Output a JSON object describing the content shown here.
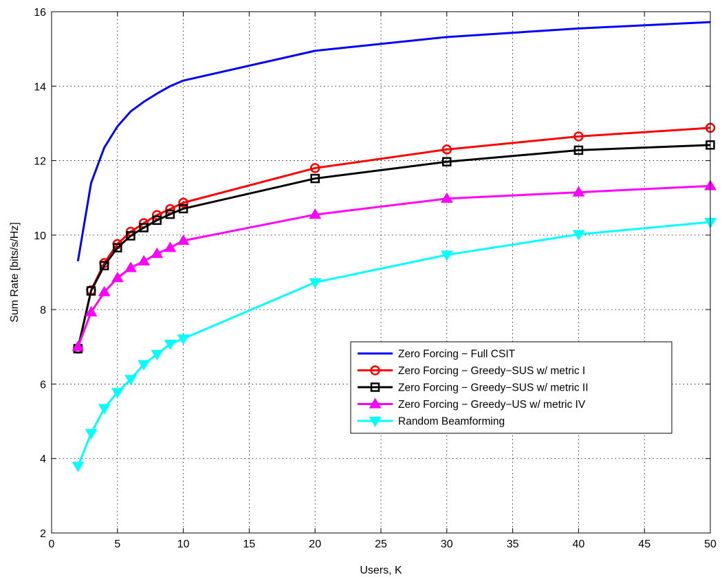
{
  "chart_data": {
    "type": "line",
    "xlabel": "Users, K",
    "ylabel": "Sum Rate [bits/s/Hz]",
    "xlim": [
      0,
      50
    ],
    "ylim": [
      2,
      16
    ],
    "xticks": [
      0,
      5,
      10,
      15,
      20,
      25,
      30,
      35,
      40,
      45,
      50
    ],
    "yticks": [
      2,
      4,
      6,
      8,
      10,
      12,
      14,
      16
    ],
    "grid": true,
    "legend_position": "lower-right",
    "series": [
      {
        "name": "Zero Forcing − Full CSIT",
        "color": "#0000ff",
        "marker": "none",
        "x": [
          2,
          3,
          4,
          5,
          6,
          7,
          8,
          9,
          10,
          20,
          30,
          40,
          50
        ],
        "y": [
          9.3,
          11.4,
          12.35,
          12.92,
          13.32,
          13.58,
          13.8,
          14.0,
          14.15,
          14.95,
          15.32,
          15.55,
          15.72
        ]
      },
      {
        "name": "Zero Forcing − Greedy−SUS w/ metric I",
        "color": "#ff0000",
        "marker": "circle",
        "x": [
          2,
          3,
          4,
          5,
          6,
          7,
          8,
          9,
          10,
          20,
          30,
          40,
          50
        ],
        "y": [
          6.95,
          8.52,
          9.25,
          9.76,
          10.09,
          10.32,
          10.54,
          10.7,
          10.87,
          11.8,
          12.3,
          12.65,
          12.88
        ]
      },
      {
        "name": "Zero Forcing − Greedy−SUS w/ metric II",
        "color": "#000000",
        "marker": "square",
        "x": [
          2,
          3,
          4,
          5,
          6,
          7,
          8,
          9,
          10,
          20,
          30,
          40,
          50
        ],
        "y": [
          6.95,
          8.5,
          9.18,
          9.66,
          9.98,
          10.2,
          10.4,
          10.56,
          10.71,
          11.52,
          11.97,
          12.28,
          12.42
        ]
      },
      {
        "name": "Zero Forcing − Greedy−US w/ metric IV",
        "color": "#ff00ff",
        "marker": "triangle-up",
        "x": [
          2,
          3,
          4,
          5,
          6,
          7,
          8,
          9,
          10,
          20,
          30,
          40,
          50
        ],
        "y": [
          7.0,
          7.93,
          8.47,
          8.85,
          9.12,
          9.3,
          9.5,
          9.66,
          9.85,
          10.55,
          10.98,
          11.15,
          11.32
        ]
      },
      {
        "name": "Random Beamforming",
        "color": "#00ffff",
        "marker": "triangle-down",
        "x": [
          2,
          3,
          4,
          5,
          6,
          7,
          8,
          9,
          10,
          20,
          30,
          40,
          50
        ],
        "y": [
          3.8,
          4.68,
          5.35,
          5.78,
          6.13,
          6.53,
          6.8,
          7.08,
          7.22,
          8.73,
          9.47,
          10.02,
          10.35
        ]
      }
    ]
  }
}
